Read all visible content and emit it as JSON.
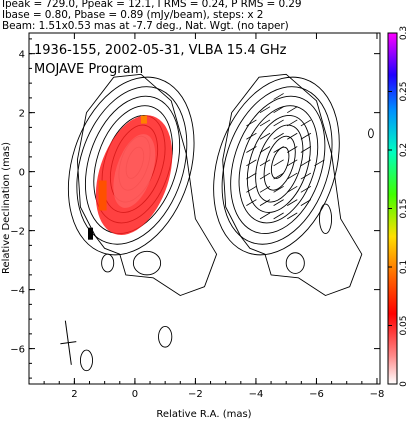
{
  "header": {
    "line1": "Ipeak = 729.0, Ppeak = 12.1, I RMS = 0.24, P RMS = 0.29",
    "line2": "Ibase = 0.80, Pbase = 0.89 (mJy/beam), steps: x 2",
    "line3": "Beam: 1.51x0.53 mas at -7.7 deg., Nat. Wgt. (no taper)"
  },
  "title": {
    "line1": "1936-155, 2002-05-31, VLBA 15.4 GHz",
    "line2": "MOJAVE Program"
  },
  "chart_data": {
    "type": "heatmap",
    "xlabel": "Relative R.A. (mas)",
    "ylabel": "Relative Declination (mas)",
    "xlim": [
      3.5,
      -8.1
    ],
    "ylim": [
      -7.2,
      4.7
    ],
    "x_ticks": [
      2,
      0,
      -2,
      -4,
      -6,
      -8
    ],
    "x_tick_labels": [
      "2",
      "0",
      "−2",
      "−4",
      "−6",
      "−8"
    ],
    "y_ticks": [
      4,
      2,
      0,
      -2,
      -4,
      -6
    ],
    "y_tick_labels": [
      "4",
      "2",
      "0",
      "−2",
      "−4",
      "−6"
    ],
    "colorbar": {
      "range": [
        0,
        0.3
      ],
      "ticks": [
        0,
        0.05,
        0.1,
        0.15,
        0.2,
        0.25,
        0.3
      ],
      "tick_labels": [
        "0",
        "0.05",
        "0.1",
        "0.15",
        "0.2",
        "0.25",
        "0.3"
      ],
      "colors": [
        "#ffffff",
        "#ff9090",
        "#ff0000",
        "#ff8000",
        "#ffff00",
        "#00ff00",
        "#00ffff",
        "#0000ff",
        "#ff00ff"
      ]
    },
    "left_panel": {
      "label": "Total intensity contours with fractional polarization color",
      "core_ra": 0.0,
      "core_dec": 0.3,
      "peak_mJy_per_beam": 729.0,
      "base_contour_mJy_per_beam": 0.8,
      "contour_step_factor": 2
    },
    "right_panel": {
      "label": "Polarized intensity contours with EVPA ticks",
      "ra_offset": -4.8,
      "peak_mJy_per_beam": 12.1,
      "base_contour_mJy_per_beam": 0.89
    },
    "beam": {
      "major_mas": 1.51,
      "minor_mas": 0.53,
      "pa_deg": -7.7
    }
  }
}
